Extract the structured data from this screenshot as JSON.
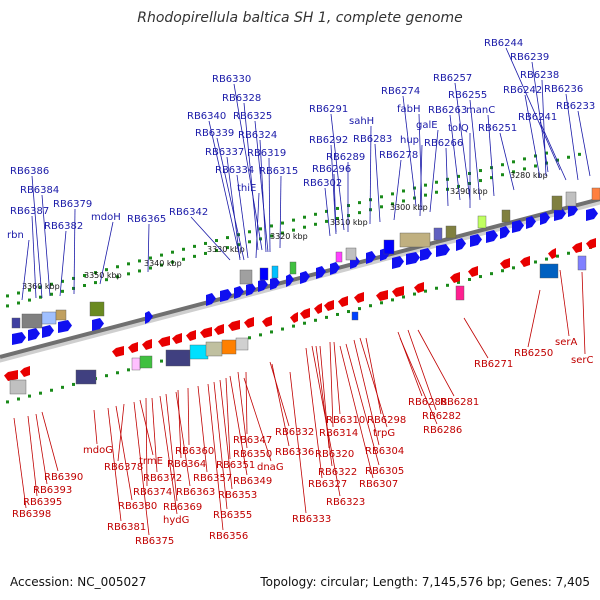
{
  "title": "Rhodopirellula baltica SH 1, complete genome",
  "footer": {
    "accession": "Accession: NC_005027",
    "summary": "Topology: circular; Length: 7,145,576 bp; Genes: 7,405"
  },
  "ticks": [
    "3280 kbp",
    "3290 kbp",
    "3300 kbp",
    "3310 kbp",
    "3320 kbp",
    "3330 kbp",
    "3340 kbp",
    "3350 kbp",
    "3360 kbp"
  ],
  "colors": {
    "forward": "#1010f0",
    "reverse": "#e80000",
    "backbone": "#707070",
    "tick_dot": "#1a8a1a"
  },
  "top_labels": [
    "RB6244",
    "RB6239",
    "RB6238",
    "RB6236",
    "RB6242",
    "RB6233",
    "RB6241",
    "RB6257",
    "RB6255",
    "manC",
    "RB6263",
    "RB6251",
    "tolQ",
    "RB6274",
    "fabH",
    "galE",
    "hup",
    "RB6266",
    "RB6291",
    "sahH",
    "RB6292",
    "RB6283",
    "RB6289",
    "RB6278",
    "RB6296",
    "RB6302",
    "RB6330",
    "RB6328",
    "RB6340",
    "RB6325",
    "RB6339",
    "RB6324",
    "RB6337",
    "RB6319",
    "RB6334",
    "RB6315",
    "thiE",
    "RB6342",
    "RB6365",
    "RB6386",
    "RB6384",
    "RB6379",
    "RB6387",
    "mdoH",
    "RB6382",
    "rbn"
  ],
  "bottom_labels": [
    "RB6250",
    "serA",
    "serC",
    "RB6271",
    "RB6281",
    "RB6282",
    "RB6288",
    "RB6286",
    "RB6298",
    "trpG",
    "RB6304",
    "RB6310",
    "RB6314",
    "RB6305",
    "RB6307",
    "RB6320",
    "RB6322",
    "RB6323",
    "RB6327",
    "RB6332",
    "RB6336",
    "RB6333",
    "RB6347",
    "RB6350",
    "dnaG",
    "RB6349",
    "RB6351",
    "RB6353",
    "RB6355",
    "RB6356",
    "RB6357",
    "RB6360",
    "RB6364",
    "RB6363",
    "RB6369",
    "hydG",
    "RB6372",
    "RB6374",
    "trmE",
    "RB6375",
    "RB6378",
    "RB6380",
    "RB6381",
    "mdoG",
    "RB6390",
    "RB6393",
    "RB6395",
    "RB6398"
  ]
}
